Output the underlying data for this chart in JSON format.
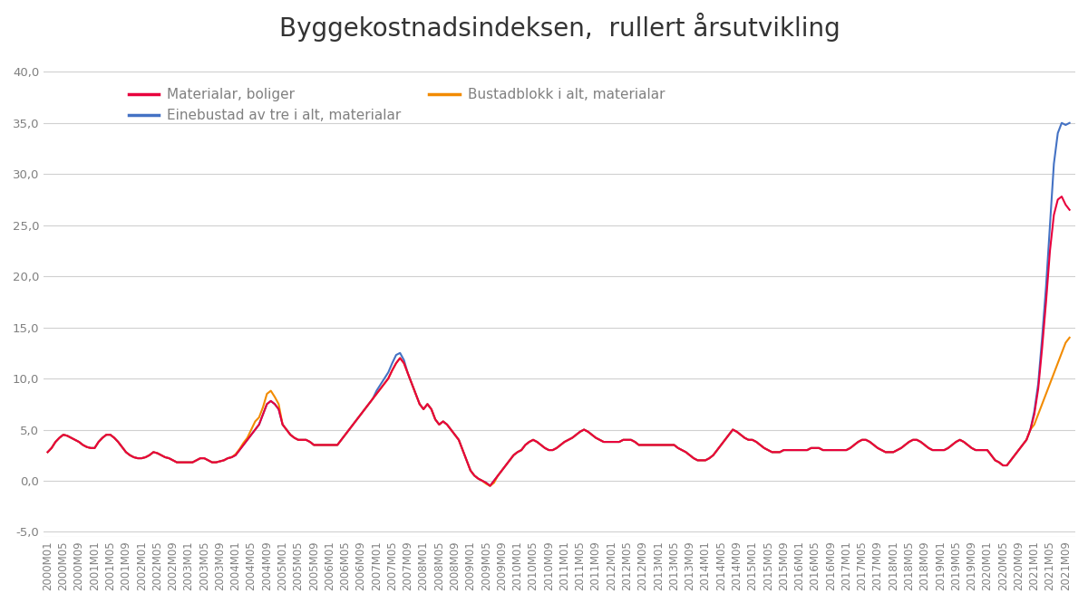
{
  "title": "Byggekostnadsindeksen,  rullert årsutvikling",
  "series": {
    "materialar_boliger": {
      "label": "Materialar, boliger",
      "color": "#E8003D"
    },
    "einebustad": {
      "label": "Einebustad av tre i alt, materialar",
      "color": "#4472C4"
    },
    "bustadblokk": {
      "label": "Bustadblokk i alt, materialar",
      "color": "#F28B00"
    }
  },
  "ylim": [
    -5.5,
    42.0
  ],
  "yticks": [
    -5.0,
    0.0,
    5.0,
    10.0,
    15.0,
    20.0,
    25.0,
    30.0,
    35.0,
    40.0
  ],
  "background_color": "#ffffff",
  "grid_color": "#d0d0d0",
  "title_fontsize": 20,
  "legend_fontsize": 11,
  "tick_color": "#808080"
}
